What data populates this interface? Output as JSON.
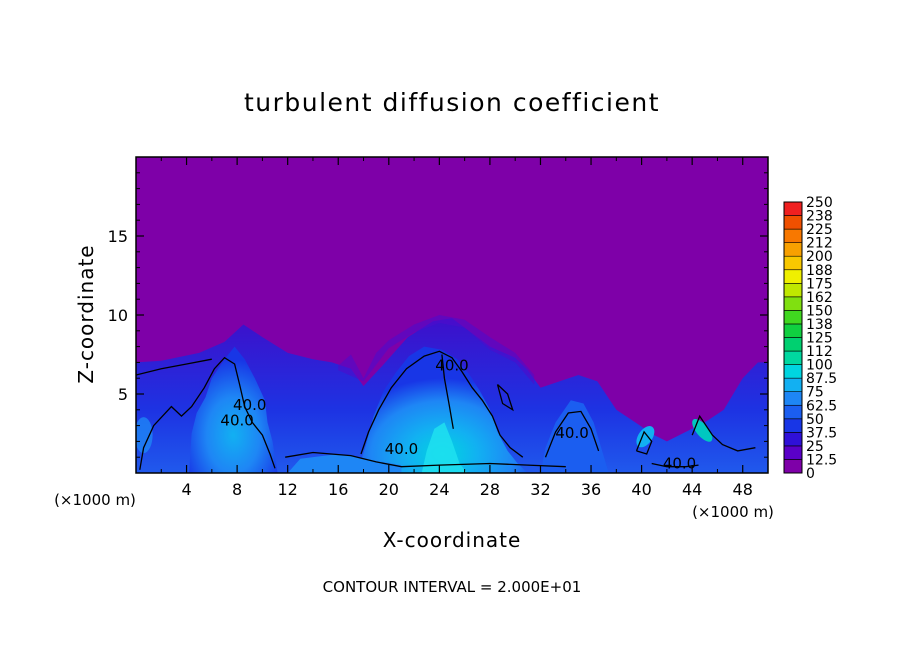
{
  "chart_data": {
    "type": "heatmap",
    "title": "turbulent diffusion coefficient",
    "xlabel": "X-coordinate",
    "ylabel": "Z-coordinate",
    "x_unit_left": "(×1000 m)",
    "x_unit_right": "(×1000 m)",
    "xlim": [
      0,
      50
    ],
    "ylim": [
      0,
      20
    ],
    "x_ticks": [
      4,
      8,
      12,
      16,
      20,
      24,
      28,
      32,
      36,
      40,
      44,
      48
    ],
    "y_ticks": [
      5,
      10,
      15
    ],
    "footer": "CONTOUR INTERVAL = 2.000E+01",
    "colorbar": {
      "levels": [
        "0",
        "12.5",
        "25",
        "37.5",
        "50",
        "62.5",
        "75",
        "87.5",
        "100",
        "112",
        "125",
        "138",
        "150",
        "162",
        "175",
        "188",
        "200",
        "212",
        "225",
        "238",
        "250"
      ],
      "colors": [
        "#7e00a8",
        "#5a00c8",
        "#2f10d8",
        "#1836e6",
        "#1b5ef0",
        "#1e86f5",
        "#12b0f2",
        "#00d5e0",
        "#00d8a0",
        "#00d070",
        "#10d040",
        "#40d820",
        "#80e010",
        "#c0e800",
        "#f0f000",
        "#f8c800",
        "#f8a000",
        "#f87800",
        "#f05000",
        "#f02020",
        "#f08080"
      ]
    },
    "contour_labels": [
      {
        "text": "40.0",
        "x": 9.0,
        "z": 4.0
      },
      {
        "text": "40.0",
        "x": 8.0,
        "z": 3.0
      },
      {
        "text": "40.0",
        "x": 21.0,
        "z": 1.2
      },
      {
        "text": "40.0",
        "x": 25.0,
        "z": 6.5
      },
      {
        "text": "40.0",
        "x": 34.5,
        "z": 2.2
      },
      {
        "text": "40.0",
        "x": 43.0,
        "z": 0.3
      }
    ],
    "regions": {
      "background_level": 0,
      "surface_layer_top_km": 6.5,
      "plumes": [
        {
          "x_center_km": 7.5,
          "top_km": 9.5,
          "level": 62.5
        },
        {
          "x_center_km": 23.5,
          "top_km": 9.8,
          "level": 75
        },
        {
          "x_center_km": 35.0,
          "top_km": 6.2,
          "level": 50
        },
        {
          "x_center_km": 40.5,
          "top_km": 3.0,
          "level": 62.5
        },
        {
          "x_center_km": 45.0,
          "top_km": 3.5,
          "level": 62.5
        },
        {
          "x_center_km": 49.5,
          "top_km": 7.0,
          "level": 37.5
        }
      ]
    }
  }
}
